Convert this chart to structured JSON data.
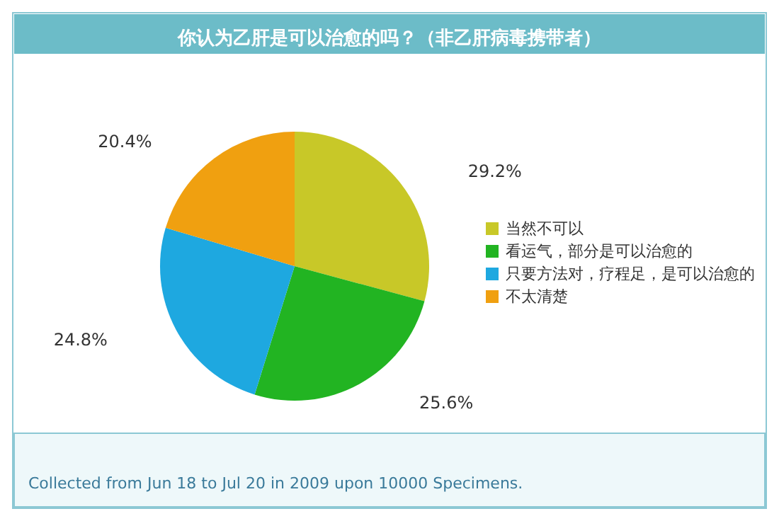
{
  "chart_data": {
    "type": "pie",
    "title": "你认为乙肝是可以治愈的吗？（非乙肝病毒携带者）",
    "categories": [
      "当然不可以",
      "看运气，部分是可以治愈的",
      "只要方法对，疗程足，是可以治愈的",
      "不太清楚"
    ],
    "values": [
      29.2,
      25.6,
      24.8,
      20.4
    ],
    "value_labels": [
      "29.2%",
      "25.6%",
      "24.8%",
      "20.4%"
    ],
    "colors": [
      "#c8c828",
      "#22b422",
      "#1ea8e0",
      "#f0a010"
    ],
    "legend": "right",
    "annotations": [
      "Collected from Jun 18 to Jul 20 in 2009 upon 10000 Specimens."
    ]
  }
}
